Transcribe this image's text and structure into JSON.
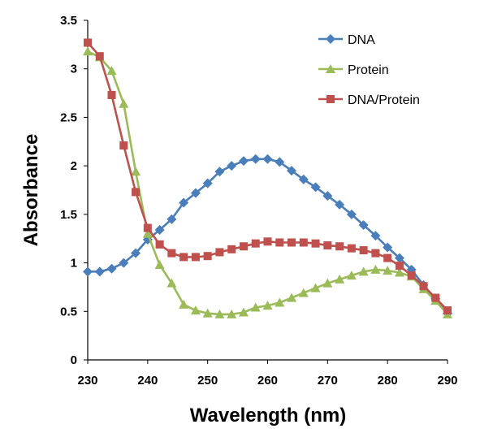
{
  "chart_data": {
    "type": "line",
    "title": "",
    "xlabel": "Wavelength (nm)",
    "ylabel": "Absorbance",
    "xlim": [
      230,
      290
    ],
    "ylim": [
      0,
      3.5
    ],
    "x_ticks": [
      "230",
      "240",
      "250",
      "260",
      "270",
      "280",
      "290"
    ],
    "y_ticks": [
      "0",
      "0.5",
      "1",
      "1.5",
      "2",
      "2.5",
      "3",
      "3.5"
    ],
    "grid": false,
    "legend_position": "top-right",
    "x": [
      230,
      232,
      234,
      236,
      238,
      240,
      242,
      244,
      246,
      248,
      250,
      252,
      254,
      256,
      258,
      260,
      262,
      264,
      266,
      268,
      270,
      272,
      274,
      276,
      278,
      280,
      282,
      284,
      286,
      288,
      290
    ],
    "series": [
      {
        "name": "DNA",
        "color": "#4a7ebb",
        "marker": "diamond",
        "values": [
          0.91,
          0.91,
          0.94,
          1.0,
          1.1,
          1.24,
          1.34,
          1.45,
          1.62,
          1.72,
          1.82,
          1.94,
          2.0,
          2.05,
          2.07,
          2.07,
          2.04,
          1.95,
          1.86,
          1.78,
          1.69,
          1.6,
          1.5,
          1.39,
          1.28,
          1.16,
          1.05,
          0.93,
          0.77,
          0.63,
          0.48
        ]
      },
      {
        "name": "Protein",
        "color": "#9bbb59",
        "marker": "triangle",
        "values": [
          3.18,
          3.12,
          2.98,
          2.64,
          1.94,
          1.3,
          0.98,
          0.79,
          0.57,
          0.51,
          0.48,
          0.47,
          0.47,
          0.49,
          0.54,
          0.56,
          0.59,
          0.64,
          0.69,
          0.74,
          0.79,
          0.83,
          0.87,
          0.91,
          0.93,
          0.92,
          0.9,
          0.86,
          0.73,
          0.61,
          0.47
        ]
      },
      {
        "name": "DNA/Protein",
        "color": "#c0504d",
        "marker": "square",
        "values": [
          3.27,
          3.13,
          2.73,
          2.21,
          1.73,
          1.36,
          1.19,
          1.1,
          1.06,
          1.06,
          1.07,
          1.11,
          1.14,
          1.17,
          1.2,
          1.22,
          1.21,
          1.21,
          1.21,
          1.2,
          1.18,
          1.17,
          1.15,
          1.13,
          1.1,
          1.05,
          0.97,
          0.87,
          0.76,
          0.64,
          0.51
        ]
      }
    ]
  }
}
